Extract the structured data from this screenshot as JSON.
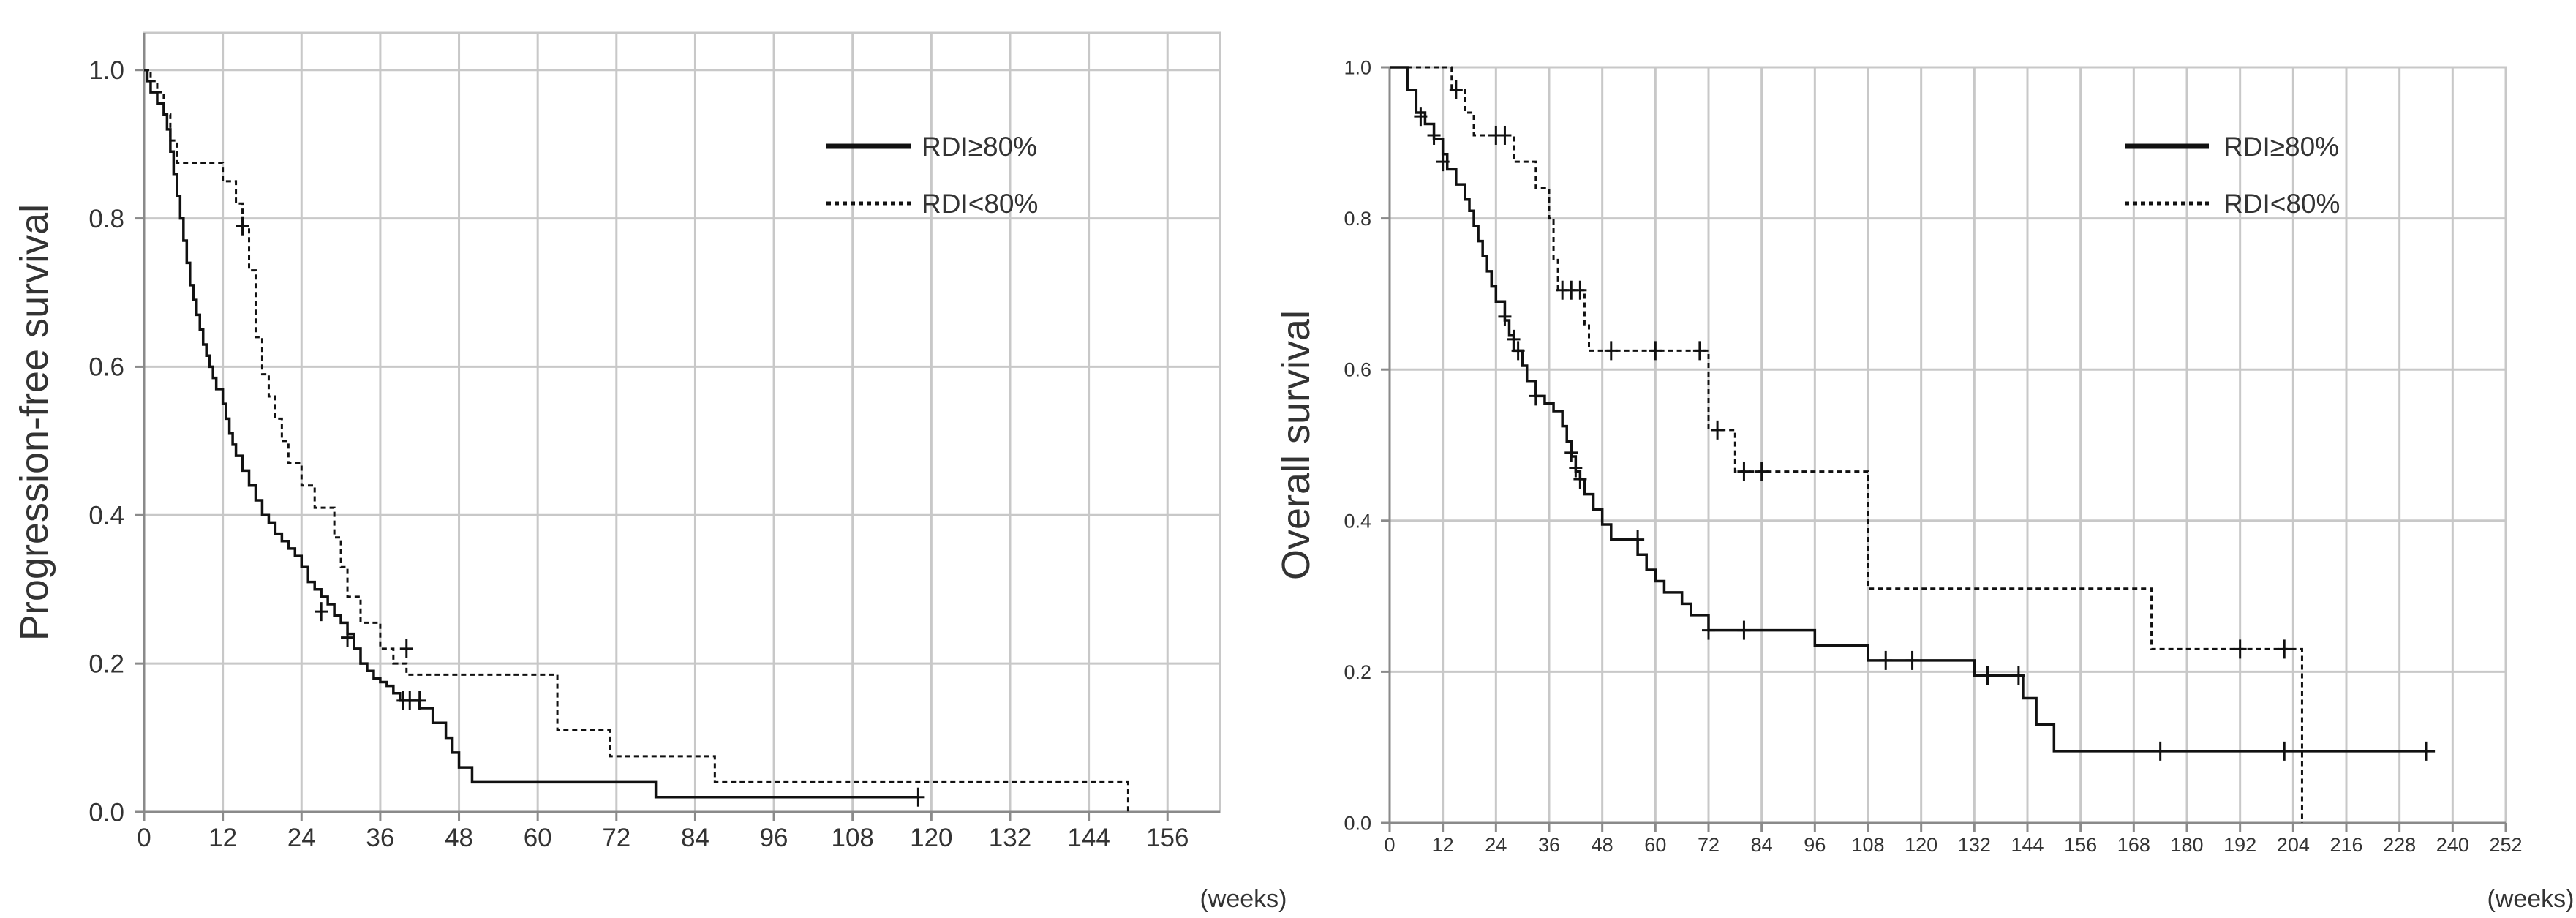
{
  "chart_data": [
    {
      "type": "line",
      "subtype": "kaplan-meier",
      "ylabel": "Progression-free survival",
      "xlabel": "(weeks)",
      "xlim": [
        0,
        164
      ],
      "ylim": [
        0,
        1.05
      ],
      "xticks": [
        0,
        12,
        24,
        36,
        48,
        60,
        72,
        84,
        96,
        108,
        120,
        132,
        144,
        156
      ],
      "yticks": [
        0.0,
        0.2,
        0.4,
        0.6,
        0.8,
        1.0
      ],
      "grid": true,
      "legend_position": "top-right",
      "series": [
        {
          "name": "RDI≥80%",
          "style": "solid",
          "steps": [
            [
              0,
              1.0
            ],
            [
              0.5,
              0.985
            ],
            [
              1,
              0.97
            ],
            [
              2,
              0.955
            ],
            [
              3,
              0.94
            ],
            [
              3.5,
              0.92
            ],
            [
              4,
              0.89
            ],
            [
              4.5,
              0.86
            ],
            [
              5,
              0.83
            ],
            [
              5.5,
              0.8
            ],
            [
              6,
              0.77
            ],
            [
              6.5,
              0.74
            ],
            [
              7,
              0.71
            ],
            [
              7.5,
              0.69
            ],
            [
              8,
              0.67
            ],
            [
              8.5,
              0.65
            ],
            [
              9,
              0.63
            ],
            [
              9.5,
              0.615
            ],
            [
              10,
              0.6
            ],
            [
              10.5,
              0.585
            ],
            [
              11,
              0.57
            ],
            [
              12,
              0.55
            ],
            [
              12.5,
              0.53
            ],
            [
              13,
              0.51
            ],
            [
              13.5,
              0.495
            ],
            [
              14,
              0.48
            ],
            [
              15,
              0.46
            ],
            [
              16,
              0.44
            ],
            [
              17,
              0.42
            ],
            [
              18,
              0.4
            ],
            [
              19,
              0.39
            ],
            [
              20,
              0.375
            ],
            [
              21,
              0.365
            ],
            [
              22,
              0.355
            ],
            [
              23,
              0.345
            ],
            [
              24,
              0.33
            ],
            [
              25,
              0.31
            ],
            [
              26,
              0.3
            ],
            [
              27,
              0.29
            ],
            [
              28,
              0.28
            ],
            [
              29,
              0.265
            ],
            [
              30,
              0.255
            ],
            [
              31,
              0.24
            ],
            [
              32,
              0.22
            ],
            [
              33,
              0.2
            ],
            [
              34,
              0.19
            ],
            [
              35,
              0.18
            ],
            [
              36,
              0.175
            ],
            [
              37,
              0.17
            ],
            [
              38,
              0.16
            ],
            [
              39,
              0.15
            ],
            [
              42,
              0.14
            ],
            [
              44,
              0.12
            ],
            [
              46,
              0.1
            ],
            [
              47,
              0.08
            ],
            [
              48,
              0.06
            ],
            [
              50,
              0.04
            ],
            [
              78,
              0.02
            ],
            [
              118,
              0.02
            ]
          ],
          "censored": [
            [
              27,
              0.27
            ],
            [
              31,
              0.235
            ],
            [
              39.5,
              0.15
            ],
            [
              40.5,
              0.15
            ],
            [
              42,
              0.15
            ],
            [
              118,
              0.02
            ]
          ]
        },
        {
          "name": "RDI<80%",
          "style": "dashed",
          "steps": [
            [
              0,
              1.0
            ],
            [
              1,
              0.985
            ],
            [
              2,
              0.97
            ],
            [
              3,
              0.94
            ],
            [
              4,
              0.905
            ],
            [
              5,
              0.875
            ],
            [
              6,
              0.875
            ],
            [
              7,
              0.875
            ],
            [
              8,
              0.875
            ],
            [
              9,
              0.875
            ],
            [
              10,
              0.875
            ],
            [
              11,
              0.875
            ],
            [
              12,
              0.85
            ],
            [
              14,
              0.82
            ],
            [
              15,
              0.79
            ],
            [
              16,
              0.73
            ],
            [
              17,
              0.64
            ],
            [
              18,
              0.59
            ],
            [
              19,
              0.56
            ],
            [
              20,
              0.53
            ],
            [
              21,
              0.5
            ],
            [
              22,
              0.47
            ],
            [
              24,
              0.44
            ],
            [
              26,
              0.41
            ],
            [
              29,
              0.37
            ],
            [
              30,
              0.33
            ],
            [
              31,
              0.29
            ],
            [
              33,
              0.255
            ],
            [
              36,
              0.22
            ],
            [
              38,
              0.2
            ],
            [
              40,
              0.185
            ],
            [
              50,
              0.185
            ],
            [
              63,
              0.11
            ],
            [
              71,
              0.075
            ],
            [
              87,
              0.04
            ],
            [
              150,
              0.04
            ],
            [
              150,
              0.0
            ]
          ],
          "censored": [
            [
              15,
              0.79
            ],
            [
              40,
              0.22
            ]
          ]
        }
      ]
    },
    {
      "type": "line",
      "subtype": "kaplan-meier",
      "ylabel": "Overall survival",
      "xlabel": "(weeks)",
      "xlim": [
        0,
        252
      ],
      "ylim": [
        0,
        1.0
      ],
      "xticks": [
        0,
        12,
        24,
        36,
        48,
        60,
        72,
        84,
        96,
        108,
        120,
        132,
        144,
        156,
        168,
        180,
        192,
        204,
        216,
        228,
        240,
        252
      ],
      "yticks": [
        0.0,
        0.2,
        0.4,
        0.6,
        0.8,
        1.0
      ],
      "grid": true,
      "legend_position": "top-right",
      "series": [
        {
          "name": "RDI≥80%",
          "style": "solid",
          "steps": [
            [
              0,
              1.0
            ],
            [
              4,
              0.97
            ],
            [
              6,
              0.94
            ],
            [
              8,
              0.925
            ],
            [
              10,
              0.905
            ],
            [
              12,
              0.885
            ],
            [
              13,
              0.865
            ],
            [
              15,
              0.845
            ],
            [
              17,
              0.825
            ],
            [
              18,
              0.81
            ],
            [
              19,
              0.79
            ],
            [
              20,
              0.77
            ],
            [
              21,
              0.75
            ],
            [
              22,
              0.73
            ],
            [
              23,
              0.71
            ],
            [
              24,
              0.69
            ],
            [
              26,
              0.665
            ],
            [
              27,
              0.645
            ],
            [
              28,
              0.625
            ],
            [
              30,
              0.605
            ],
            [
              31,
              0.585
            ],
            [
              33,
              0.565
            ],
            [
              35,
              0.555
            ],
            [
              37,
              0.545
            ],
            [
              39,
              0.525
            ],
            [
              40,
              0.505
            ],
            [
              41,
              0.485
            ],
            [
              42,
              0.465
            ],
            [
              43,
              0.455
            ],
            [
              44,
              0.435
            ],
            [
              46,
              0.415
            ],
            [
              48,
              0.395
            ],
            [
              50,
              0.375
            ],
            [
              56,
              0.355
            ],
            [
              58,
              0.335
            ],
            [
              60,
              0.32
            ],
            [
              62,
              0.305
            ],
            [
              66,
              0.29
            ],
            [
              68,
              0.275
            ],
            [
              72,
              0.255
            ],
            [
              96,
              0.235
            ],
            [
              108,
              0.215
            ],
            [
              132,
              0.195
            ],
            [
              143,
              0.165
            ],
            [
              146,
              0.13
            ],
            [
              150,
              0.095
            ],
            [
              236,
              0.095
            ]
          ],
          "censored": [
            [
              7,
              0.935
            ],
            [
              10,
              0.91
            ],
            [
              12,
              0.875
            ],
            [
              26,
              0.67
            ],
            [
              28,
              0.64
            ],
            [
              29,
              0.625
            ],
            [
              33,
              0.565
            ],
            [
              41,
              0.49
            ],
            [
              42,
              0.47
            ],
            [
              43,
              0.455
            ],
            [
              56,
              0.375
            ],
            [
              72,
              0.255
            ],
            [
              80,
              0.255
            ],
            [
              112,
              0.215
            ],
            [
              118,
              0.215
            ],
            [
              135,
              0.195
            ],
            [
              142,
              0.195
            ],
            [
              174,
              0.095
            ],
            [
              202,
              0.095
            ],
            [
              234,
              0.095
            ]
          ]
        },
        {
          "name": "RDI<80%",
          "style": "dashed",
          "steps": [
            [
              0,
              1.0
            ],
            [
              14,
              0.97
            ],
            [
              17,
              0.94
            ],
            [
              19,
              0.91
            ],
            [
              24,
              0.91
            ],
            [
              28,
              0.875
            ],
            [
              33,
              0.84
            ],
            [
              36,
              0.8
            ],
            [
              37,
              0.745
            ],
            [
              38,
              0.705
            ],
            [
              44,
              0.66
            ],
            [
              45,
              0.625
            ],
            [
              72,
              0.52
            ],
            [
              78,
              0.465
            ],
            [
              108,
              0.31
            ],
            [
              172,
              0.23
            ],
            [
              206,
              0.23
            ],
            [
              206,
              0.0
            ]
          ],
          "censored": [
            [
              15,
              0.97
            ],
            [
              24,
              0.91
            ],
            [
              26,
              0.91
            ],
            [
              39,
              0.705
            ],
            [
              41,
              0.705
            ],
            [
              43,
              0.705
            ],
            [
              50,
              0.625
            ],
            [
              60,
              0.625
            ],
            [
              70,
              0.625
            ],
            [
              74,
              0.52
            ],
            [
              80,
              0.465
            ],
            [
              84,
              0.465
            ],
            [
              192,
              0.23
            ],
            [
              202,
              0.23
            ]
          ]
        }
      ]
    }
  ],
  "legend": {
    "solid_label": "RDI≥80%",
    "dashed_label": "RDI<80%"
  }
}
